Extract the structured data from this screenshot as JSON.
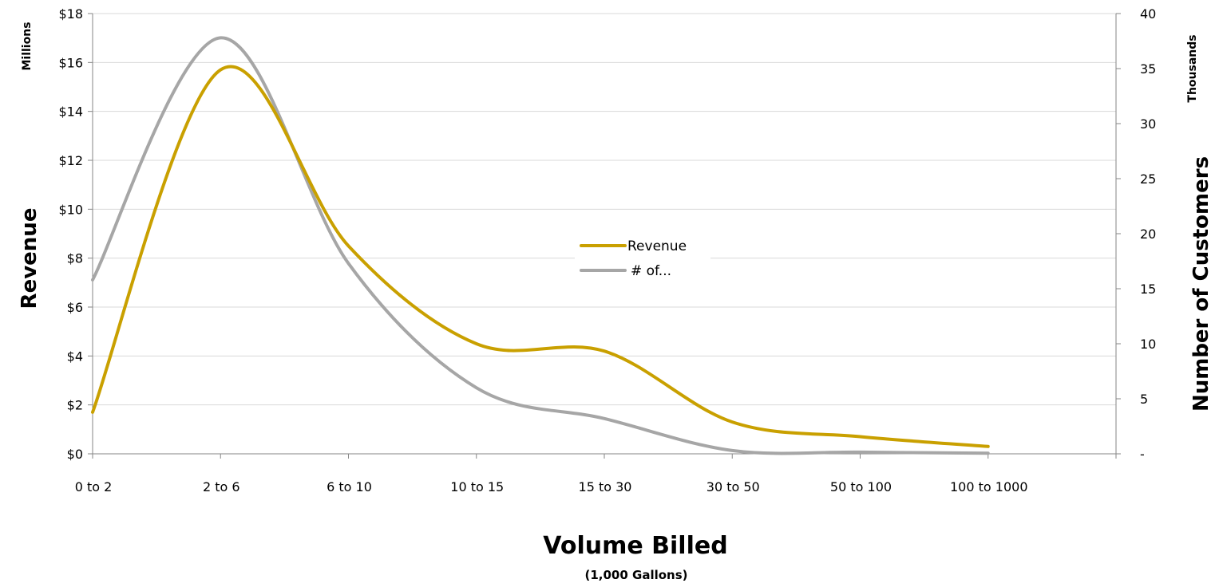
{
  "chart_data": {
    "type": "line",
    "smooth": true,
    "categories": [
      "0 to 2",
      "2 to 6",
      "6 to 10",
      "10 to 15",
      "15 to 30",
      "30 to 50",
      "50 to 100",
      "100 to 1000"
    ],
    "xlabel": "Volume Billed",
    "xlabel_sub": "(1,000 Gallons)",
    "y_left": {
      "label": "Revenue",
      "unit_label": "Millions",
      "ylim": [
        0,
        18
      ],
      "ticks": [
        0,
        2,
        4,
        6,
        8,
        10,
        12,
        14,
        16,
        18
      ],
      "tick_labels": [
        "$0",
        "$2",
        "$4",
        "$6",
        "$8",
        "$10",
        "$12",
        "$14",
        "$16",
        "$18"
      ]
    },
    "y_right": {
      "label": "Number of Customers",
      "unit_label": "Thousands",
      "ylim": [
        0,
        40
      ],
      "ticks": [
        0,
        5,
        10,
        15,
        20,
        25,
        30,
        35,
        40
      ],
      "tick_labels": [
        "-",
        "5",
        "10",
        "15",
        "20",
        "25",
        "30",
        "35",
        "40"
      ]
    },
    "series": [
      {
        "name": "Revenue",
        "axis": "left",
        "color": "#C9A000",
        "values": [
          1.7,
          15.7,
          8.5,
          4.5,
          4.2,
          1.3,
          0.7,
          0.3
        ]
      },
      {
        "name": "# of...",
        "axis": "right",
        "color": "#A6A6A6",
        "values": [
          15.8,
          37.8,
          17.3,
          6.0,
          3.2,
          0.3,
          0.15,
          0.05
        ]
      }
    ],
    "legend": {
      "placement": "center",
      "entries": [
        "Revenue",
        "# of..."
      ]
    },
    "grid": {
      "horizontal": true,
      "color": "#D9D9D9"
    },
    "axis_color": "#868686"
  }
}
